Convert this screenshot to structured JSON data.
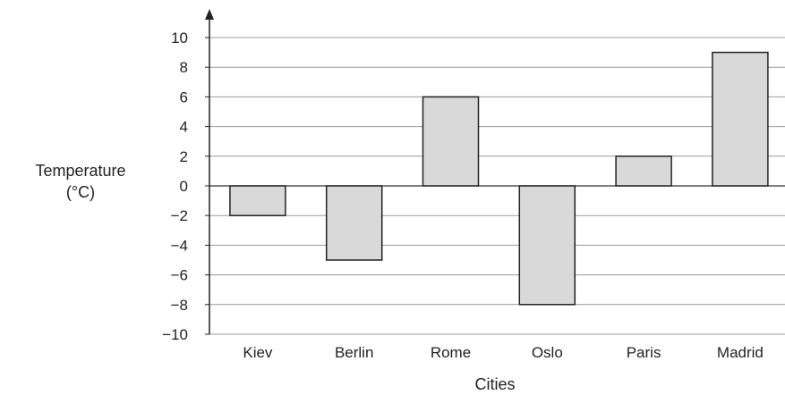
{
  "chart_data": {
    "type": "bar",
    "title": "",
    "xlabel": "Cities",
    "ylabel": [
      "Temperature",
      "(°C)"
    ],
    "categories": [
      "Kiev",
      "Berlin",
      "Rome",
      "Oslo",
      "Paris",
      "Madrid"
    ],
    "values": [
      -2,
      -5,
      6,
      -8,
      2,
      9
    ],
    "ylim": [
      -10,
      10
    ],
    "yticks": [
      10,
      8,
      6,
      4,
      2,
      0,
      -2,
      -4,
      -6,
      -8,
      -10
    ],
    "ytick_labels": [
      "10",
      "8",
      "6",
      "4",
      "2",
      "0",
      "−2",
      "−4",
      "−6",
      "−8",
      "−10"
    ],
    "grid": true,
    "bar_color": "#d9d9d9",
    "bar_edge_color": "#222222",
    "grid_color": "#999999"
  }
}
